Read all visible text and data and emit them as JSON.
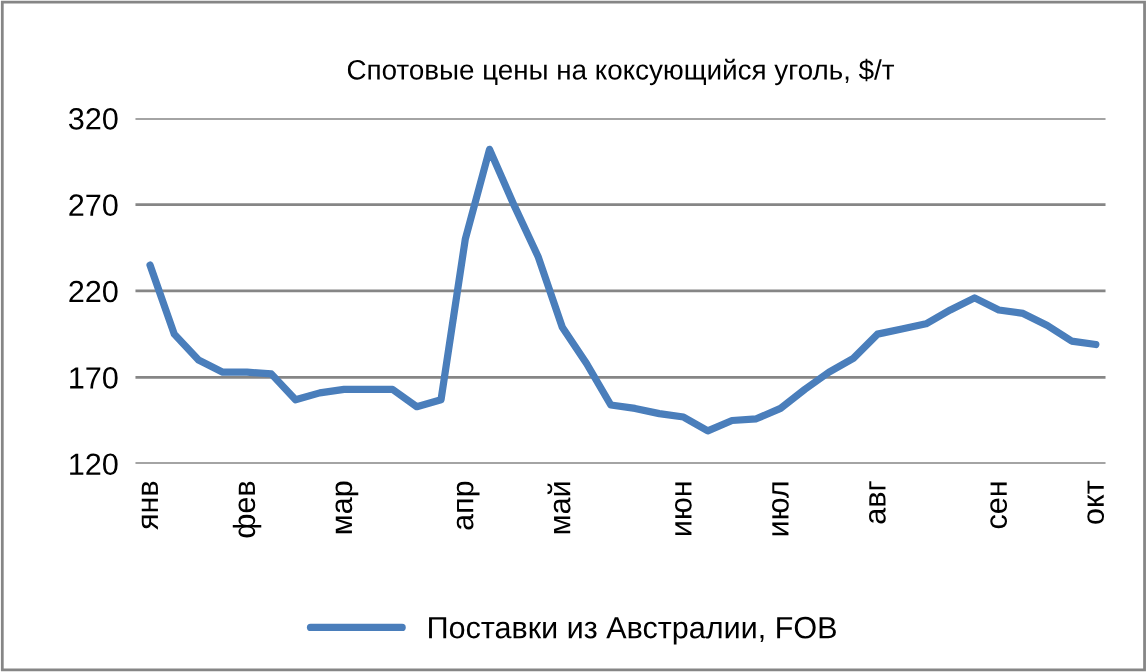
{
  "chart_data": {
    "type": "line",
    "title": "Спотовые цены на коксующийся уголь, $/т",
    "categories": [
      "янв",
      null,
      null,
      null,
      "фев",
      null,
      null,
      null,
      "мар",
      null,
      null,
      null,
      null,
      "апр",
      null,
      null,
      null,
      "май",
      null,
      null,
      null,
      null,
      "июн",
      null,
      null,
      null,
      "июл",
      null,
      null,
      null,
      "авг",
      null,
      null,
      null,
      null,
      "сен",
      null,
      null,
      null,
      "окт"
    ],
    "series": [
      {
        "name": "Поставки из Австралии, FOB",
        "color": "#4a7ebb",
        "values": [
          235,
          195,
          180,
          173,
          173,
          172,
          157,
          161,
          163,
          163,
          163,
          153,
          157,
          250,
          302,
          270,
          240,
          199,
          178,
          154,
          152,
          149,
          147,
          139,
          145,
          146,
          152,
          163,
          173,
          181,
          195,
          198,
          201,
          209,
          216,
          209,
          207,
          200,
          191,
          189
        ]
      }
    ],
    "ylim": [
      120,
      320
    ],
    "yticks": [
      120,
      170,
      220,
      270,
      320
    ],
    "grid": "y",
    "legend": "bottom",
    "marker": "none",
    "line_style": "solid"
  }
}
